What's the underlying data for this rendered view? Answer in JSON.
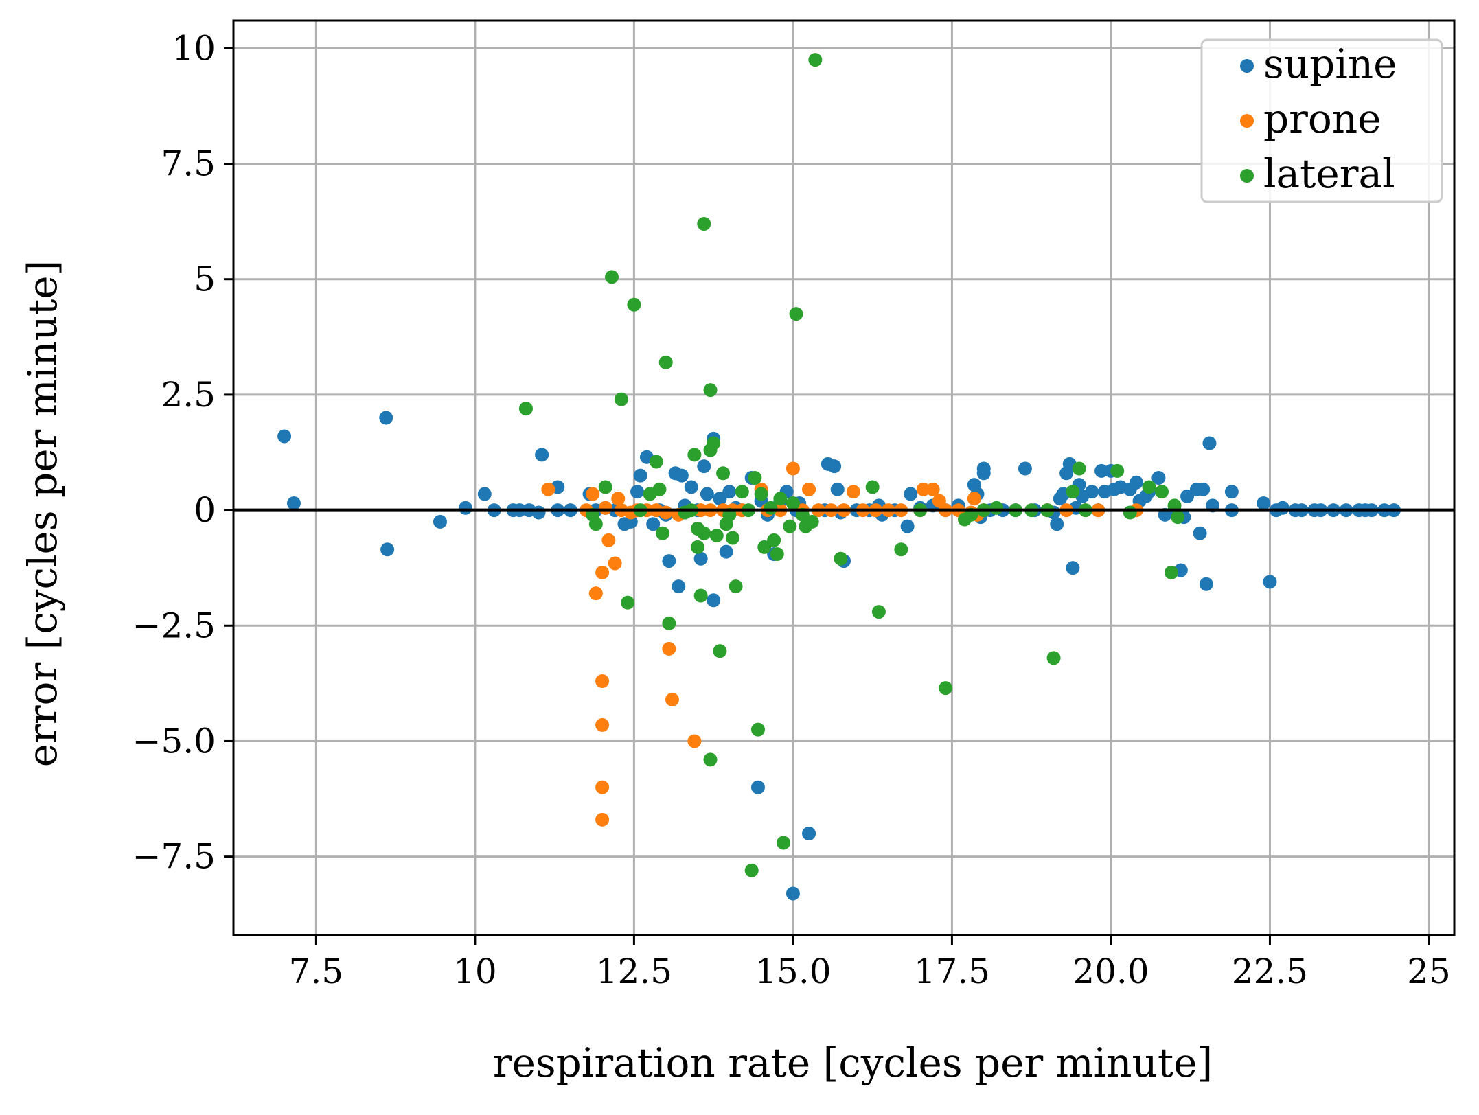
{
  "chart_data": {
    "type": "scatter",
    "xlabel": "respiration rate [cycles per minute]",
    "ylabel": "error [cycles per minute]",
    "xlim": [
      6.2,
      25.4
    ],
    "ylim": [
      -9.2,
      10.6
    ],
    "xticks": [
      7.5,
      10,
      12.5,
      15.0,
      17.5,
      20.0,
      22.5,
      25
    ],
    "xtick_labels": [
      "7.5",
      "10",
      "12.5",
      "15.0",
      "17.5",
      "20.0",
      "22.5",
      "25"
    ],
    "yticks": [
      10,
      7.5,
      5,
      2.5,
      0,
      -2.5,
      -5.0,
      -7.5
    ],
    "ytick_labels": [
      "10",
      "7.5",
      "5",
      "2.5",
      "0",
      "−2.5",
      "−5.0",
      "−7.5"
    ],
    "grid": true,
    "zero_line": true,
    "legend_position": "top-right",
    "series": [
      {
        "name": "supine",
        "color": "#1f77b4",
        "points": [
          [
            7.0,
            1.6
          ],
          [
            7.15,
            0.15
          ],
          [
            8.6,
            2.0
          ],
          [
            8.62,
            -0.85
          ],
          [
            9.45,
            -0.25
          ],
          [
            9.85,
            0.05
          ],
          [
            10.15,
            0.35
          ],
          [
            10.3,
            0.0
          ],
          [
            10.6,
            0.0
          ],
          [
            10.7,
            0.0
          ],
          [
            10.85,
            0.0
          ],
          [
            11.0,
            -0.05
          ],
          [
            11.05,
            1.2
          ],
          [
            11.3,
            0.5
          ],
          [
            11.3,
            0.0
          ],
          [
            11.5,
            0.0
          ],
          [
            11.8,
            0.35
          ],
          [
            11.9,
            0.0
          ],
          [
            12.05,
            0.05
          ],
          [
            12.2,
            0.0
          ],
          [
            12.35,
            -0.3
          ],
          [
            12.45,
            -0.25
          ],
          [
            12.55,
            0.4
          ],
          [
            12.6,
            0.75
          ],
          [
            12.7,
            1.15
          ],
          [
            12.8,
            -0.3
          ],
          [
            12.9,
            0.0
          ],
          [
            13.0,
            -0.1
          ],
          [
            13.05,
            -1.1
          ],
          [
            13.15,
            0.8
          ],
          [
            13.2,
            -1.65
          ],
          [
            13.25,
            0.75
          ],
          [
            13.3,
            0.1
          ],
          [
            13.4,
            0.5
          ],
          [
            13.5,
            0.0
          ],
          [
            13.55,
            -1.05
          ],
          [
            13.6,
            0.95
          ],
          [
            13.65,
            0.35
          ],
          [
            13.75,
            1.55
          ],
          [
            13.75,
            -1.95
          ],
          [
            13.85,
            0.25
          ],
          [
            13.95,
            -0.9
          ],
          [
            14.0,
            0.4
          ],
          [
            14.1,
            0.05
          ],
          [
            14.2,
            0.0
          ],
          [
            14.35,
            0.7
          ],
          [
            14.45,
            -6.0
          ],
          [
            14.5,
            0.2
          ],
          [
            14.6,
            -0.1
          ],
          [
            14.7,
            -0.95
          ],
          [
            14.8,
            0.2
          ],
          [
            14.9,
            0.4
          ],
          [
            15.0,
            -8.3
          ],
          [
            15.05,
            0.0
          ],
          [
            15.1,
            0.15
          ],
          [
            15.25,
            -7.0
          ],
          [
            15.5,
            0.0
          ],
          [
            15.55,
            1.0
          ],
          [
            15.65,
            0.95
          ],
          [
            15.7,
            0.45
          ],
          [
            15.75,
            -0.05
          ],
          [
            15.8,
            -1.1
          ],
          [
            16.0,
            0.0
          ],
          [
            16.2,
            0.0
          ],
          [
            16.35,
            0.1
          ],
          [
            16.4,
            -0.1
          ],
          [
            16.6,
            0.0
          ],
          [
            16.8,
            -0.35
          ],
          [
            16.85,
            0.35
          ],
          [
            17.0,
            0.05
          ],
          [
            17.2,
            0.1
          ],
          [
            17.4,
            0.0
          ],
          [
            17.6,
            0.1
          ],
          [
            17.85,
            0.55
          ],
          [
            17.9,
            0.35
          ],
          [
            17.95,
            -0.15
          ],
          [
            18.0,
            0.8
          ],
          [
            18.0,
            0.9
          ],
          [
            18.1,
            0.0
          ],
          [
            18.3,
            0.0
          ],
          [
            18.5,
            0.0
          ],
          [
            18.65,
            0.9
          ],
          [
            18.8,
            0.0
          ],
          [
            19.0,
            0.0
          ],
          [
            19.1,
            -0.05
          ],
          [
            19.15,
            -0.3
          ],
          [
            19.2,
            0.25
          ],
          [
            19.25,
            0.35
          ],
          [
            19.3,
            0.8
          ],
          [
            19.35,
            1.0
          ],
          [
            19.4,
            -1.25
          ],
          [
            19.45,
            0.05
          ],
          [
            19.5,
            0.55
          ],
          [
            19.55,
            0.3
          ],
          [
            19.7,
            0.4
          ],
          [
            19.8,
            0.0
          ],
          [
            19.85,
            0.85
          ],
          [
            19.9,
            0.4
          ],
          [
            20.0,
            0.85
          ],
          [
            20.05,
            0.45
          ],
          [
            20.15,
            0.5
          ],
          [
            20.3,
            0.45
          ],
          [
            20.4,
            0.6
          ],
          [
            20.45,
            0.2
          ],
          [
            20.55,
            0.3
          ],
          [
            20.6,
            0.4
          ],
          [
            20.75,
            0.7
          ],
          [
            20.85,
            -0.1
          ],
          [
            21.0,
            0.0
          ],
          [
            21.1,
            -1.3
          ],
          [
            21.15,
            -0.15
          ],
          [
            21.2,
            0.3
          ],
          [
            21.35,
            0.45
          ],
          [
            21.4,
            -0.5
          ],
          [
            21.45,
            0.45
          ],
          [
            21.5,
            -1.6
          ],
          [
            21.55,
            1.45
          ],
          [
            21.6,
            0.1
          ],
          [
            21.9,
            0.4
          ],
          [
            21.9,
            0.0
          ],
          [
            22.4,
            0.15
          ],
          [
            22.5,
            -1.55
          ],
          [
            22.6,
            0.0
          ],
          [
            22.7,
            0.05
          ],
          [
            22.9,
            0.0
          ],
          [
            23.0,
            0.0
          ],
          [
            23.2,
            0.0
          ],
          [
            23.3,
            0.0
          ],
          [
            23.5,
            0.0
          ],
          [
            23.7,
            0.0
          ],
          [
            23.9,
            0.0
          ],
          [
            24.0,
            0.0
          ],
          [
            24.1,
            0.0
          ],
          [
            24.3,
            0.0
          ],
          [
            24.45,
            0.0
          ]
        ]
      },
      {
        "name": "prone",
        "color": "#ff7f0e",
        "points": [
          [
            11.15,
            0.45
          ],
          [
            11.75,
            0.0
          ],
          [
            11.85,
            0.35
          ],
          [
            11.9,
            -1.8
          ],
          [
            12.0,
            -1.35
          ],
          [
            12.0,
            -3.7
          ],
          [
            12.0,
            -4.65
          ],
          [
            12.0,
            -6.0
          ],
          [
            12.0,
            -6.7
          ],
          [
            12.05,
            0.05
          ],
          [
            12.1,
            -0.65
          ],
          [
            12.2,
            -1.15
          ],
          [
            12.25,
            0.25
          ],
          [
            12.3,
            0.0
          ],
          [
            12.45,
            -0.05
          ],
          [
            12.55,
            0.0
          ],
          [
            12.7,
            0.0
          ],
          [
            12.85,
            0.0
          ],
          [
            13.0,
            -0.05
          ],
          [
            13.05,
            -3.0
          ],
          [
            13.1,
            -4.1
          ],
          [
            13.2,
            -0.1
          ],
          [
            13.45,
            -5.0
          ],
          [
            13.55,
            0.0
          ],
          [
            13.7,
            0.0
          ],
          [
            13.9,
            0.0
          ],
          [
            14.05,
            0.0
          ],
          [
            14.2,
            0.0
          ],
          [
            14.5,
            0.45
          ],
          [
            14.6,
            0.0
          ],
          [
            14.8,
            0.0
          ],
          [
            15.0,
            0.9
          ],
          [
            15.15,
            0.0
          ],
          [
            15.25,
            0.45
          ],
          [
            15.4,
            0.0
          ],
          [
            15.6,
            0.0
          ],
          [
            15.8,
            0.0
          ],
          [
            15.95,
            0.4
          ],
          [
            16.1,
            0.0
          ],
          [
            16.3,
            0.0
          ],
          [
            16.5,
            0.0
          ],
          [
            16.7,
            0.0
          ],
          [
            17.0,
            0.0
          ],
          [
            17.05,
            0.45
          ],
          [
            17.2,
            0.45
          ],
          [
            17.3,
            0.2
          ],
          [
            17.4,
            0.0
          ],
          [
            17.6,
            0.0
          ],
          [
            17.8,
            -0.05
          ],
          [
            17.85,
            0.25
          ],
          [
            17.9,
            -0.1
          ],
          [
            18.0,
            0.0
          ],
          [
            19.0,
            0.0
          ],
          [
            19.3,
            0.0
          ],
          [
            19.6,
            0.0
          ],
          [
            19.8,
            0.0
          ],
          [
            20.4,
            0.0
          ]
        ]
      },
      {
        "name": "lateral",
        "color": "#2ca02c",
        "points": [
          [
            10.8,
            2.2
          ],
          [
            11.85,
            -0.1
          ],
          [
            11.9,
            -0.3
          ],
          [
            12.05,
            0.5
          ],
          [
            12.15,
            5.05
          ],
          [
            12.3,
            2.4
          ],
          [
            12.4,
            -2.0
          ],
          [
            12.5,
            4.45
          ],
          [
            12.6,
            0.0
          ],
          [
            12.75,
            0.35
          ],
          [
            12.85,
            1.05
          ],
          [
            12.9,
            0.45
          ],
          [
            12.95,
            -0.5
          ],
          [
            13.0,
            3.2
          ],
          [
            13.05,
            -2.45
          ],
          [
            13.3,
            -0.05
          ],
          [
            13.4,
            0.0
          ],
          [
            13.45,
            1.2
          ],
          [
            13.5,
            -0.8
          ],
          [
            13.5,
            -0.4
          ],
          [
            13.55,
            -1.85
          ],
          [
            13.6,
            6.2
          ],
          [
            13.6,
            -0.5
          ],
          [
            13.7,
            2.6
          ],
          [
            13.7,
            1.3
          ],
          [
            13.7,
            -5.4
          ],
          [
            13.75,
            1.45
          ],
          [
            13.8,
            -0.55
          ],
          [
            13.85,
            -3.05
          ],
          [
            13.9,
            0.8
          ],
          [
            13.95,
            -0.3
          ],
          [
            14.0,
            -0.1
          ],
          [
            14.05,
            -0.6
          ],
          [
            14.1,
            -1.65
          ],
          [
            14.2,
            0.4
          ],
          [
            14.3,
            0.0
          ],
          [
            14.35,
            -7.8
          ],
          [
            14.4,
            0.7
          ],
          [
            14.45,
            -4.75
          ],
          [
            14.5,
            0.35
          ],
          [
            14.55,
            -0.8
          ],
          [
            14.65,
            0.05
          ],
          [
            14.7,
            -0.65
          ],
          [
            14.75,
            -0.95
          ],
          [
            14.8,
            0.25
          ],
          [
            14.85,
            -7.2
          ],
          [
            14.95,
            -0.35
          ],
          [
            15.0,
            0.15
          ],
          [
            15.05,
            4.25
          ],
          [
            15.15,
            -0.1
          ],
          [
            15.2,
            -0.35
          ],
          [
            15.3,
            -0.25
          ],
          [
            15.35,
            9.75
          ],
          [
            15.75,
            -1.05
          ],
          [
            16.25,
            0.5
          ],
          [
            16.35,
            -2.2
          ],
          [
            16.7,
            -0.85
          ],
          [
            17.0,
            0.0
          ],
          [
            17.4,
            -3.85
          ],
          [
            17.7,
            -0.2
          ],
          [
            17.8,
            -0.1
          ],
          [
            18.0,
            0.0
          ],
          [
            18.2,
            0.05
          ],
          [
            18.5,
            0.0
          ],
          [
            18.75,
            0.0
          ],
          [
            19.0,
            0.0
          ],
          [
            19.1,
            -3.2
          ],
          [
            19.4,
            0.4
          ],
          [
            19.5,
            0.9
          ],
          [
            19.6,
            0.0
          ],
          [
            20.1,
            0.85
          ],
          [
            20.3,
            -0.05
          ],
          [
            20.6,
            0.5
          ],
          [
            20.8,
            0.4
          ],
          [
            20.95,
            -1.35
          ],
          [
            21.0,
            0.1
          ],
          [
            21.05,
            -0.15
          ]
        ]
      }
    ]
  }
}
